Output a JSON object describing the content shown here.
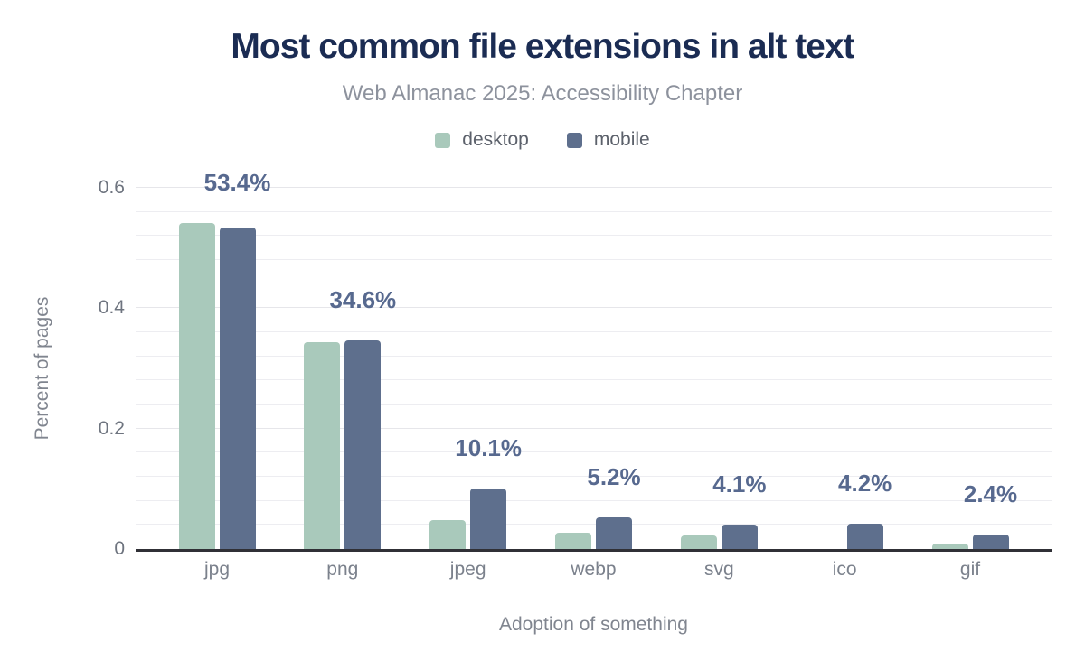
{
  "header": {
    "title": "Most common file extensions in alt text",
    "subtitle": "Web Almanac 2025: Accessibility Chapter"
  },
  "palette": {
    "desktop_bar": "#a9c9bb",
    "mobile_bar": "#5e6f8d",
    "title_text": "#1b2c53",
    "value_label_text": "#57698f",
    "axis_baseline": "#303036"
  },
  "chart_data": {
    "type": "bar",
    "categories": [
      "jpg",
      "png",
      "jpeg",
      "webp",
      "svg",
      "ico",
      "gif"
    ],
    "series": [
      {
        "name": "desktop",
        "color": "#a9c9bb",
        "values": [
          0.541,
          0.343,
          0.048,
          0.027,
          0.023,
          0,
          0.009
        ]
      },
      {
        "name": "mobile",
        "color": "#5e6f8d",
        "values": [
          0.534,
          0.346,
          0.101,
          0.052,
          0.041,
          0.042,
          0.024
        ]
      }
    ],
    "bar_labels": [
      "53.4%",
      "34.6%",
      "10.1%",
      "5.2%",
      "4.1%",
      "4.2%",
      "2.4%"
    ],
    "title": "Most common file extensions in alt text",
    "subtitle": "Web Almanac 2025: Accessibility Chapter",
    "xlabel": "Adoption of something",
    "ylabel": "Percent of pages",
    "ylim": [
      0,
      0.6
    ],
    "yticks": [
      0,
      0.2,
      0.4,
      0.6
    ],
    "ytick_labels": [
      "0",
      "0.2",
      "0.4",
      "0.6"
    ],
    "grid": "horizontal minor lines every 0.04, dark baseline at 0",
    "legend_position": "top center"
  }
}
